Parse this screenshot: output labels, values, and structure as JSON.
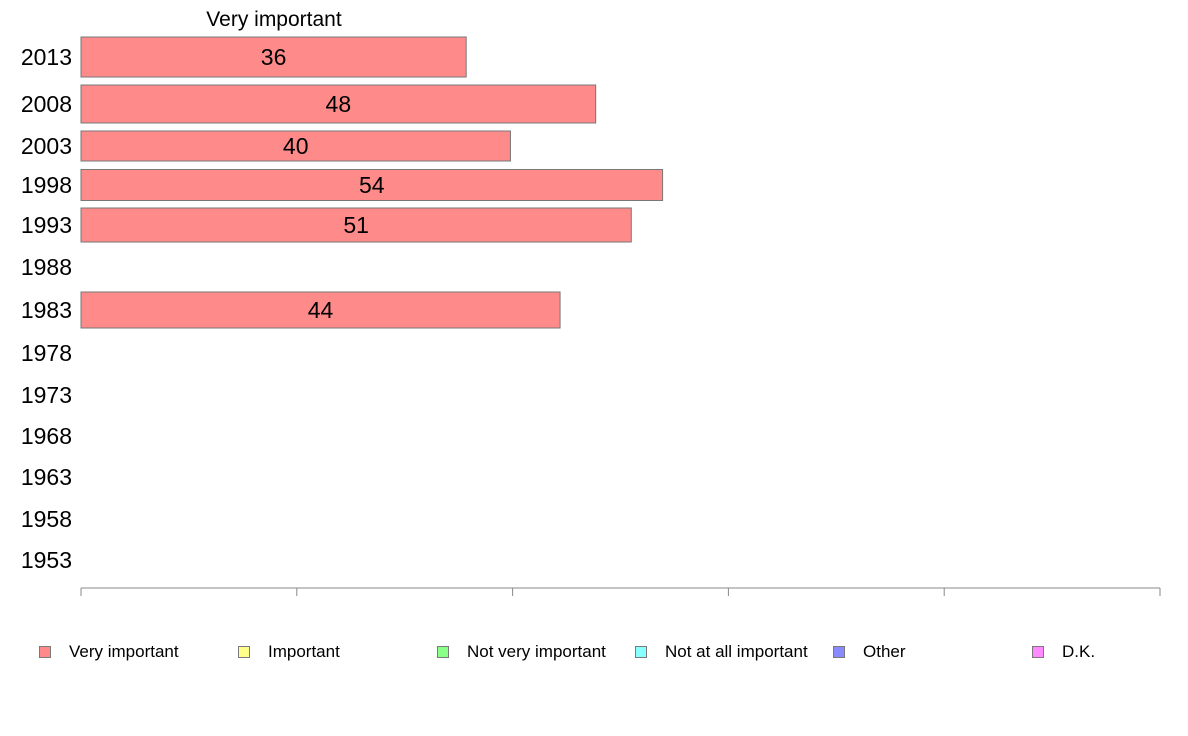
{
  "chart_data": {
    "type": "bar",
    "orientation": "horizontal",
    "title": "Very important",
    "xlabel": "",
    "ylabel": "",
    "xlim": [
      0,
      100
    ],
    "x_ticks": [
      "0",
      "20",
      "40",
      "60",
      "80",
      "100"
    ],
    "categories": [
      "2013",
      "2008",
      "2003",
      "1998",
      "1993",
      "1988",
      "1983",
      "1978",
      "1973",
      "1968",
      "1963",
      "1958",
      "1953"
    ],
    "series": [
      {
        "name": "Very important",
        "color": "#ff8a8a",
        "values": [
          35.7,
          47.7,
          39.8,
          53.9,
          51.0,
          null,
          44.4,
          null,
          null,
          null,
          null,
          null,
          null
        ],
        "labels": [
          "36",
          "48",
          "40",
          "54",
          "51",
          "",
          "44",
          "",
          "",
          "",
          "",
          "",
          ""
        ]
      }
    ],
    "grid": false,
    "legend_position": "bottom",
    "legend": [
      {
        "label": "Very important",
        "color": "#ff8a8a"
      },
      {
        "label": "Important",
        "color": "#ffff8a"
      },
      {
        "label": "Not very important",
        "color": "#8aff8a"
      },
      {
        "label": "Not at all important",
        "color": "#8affff"
      },
      {
        "label": "Other",
        "color": "#8a8aff"
      },
      {
        "label": "D.K.",
        "color": "#ff8aff"
      }
    ]
  }
}
